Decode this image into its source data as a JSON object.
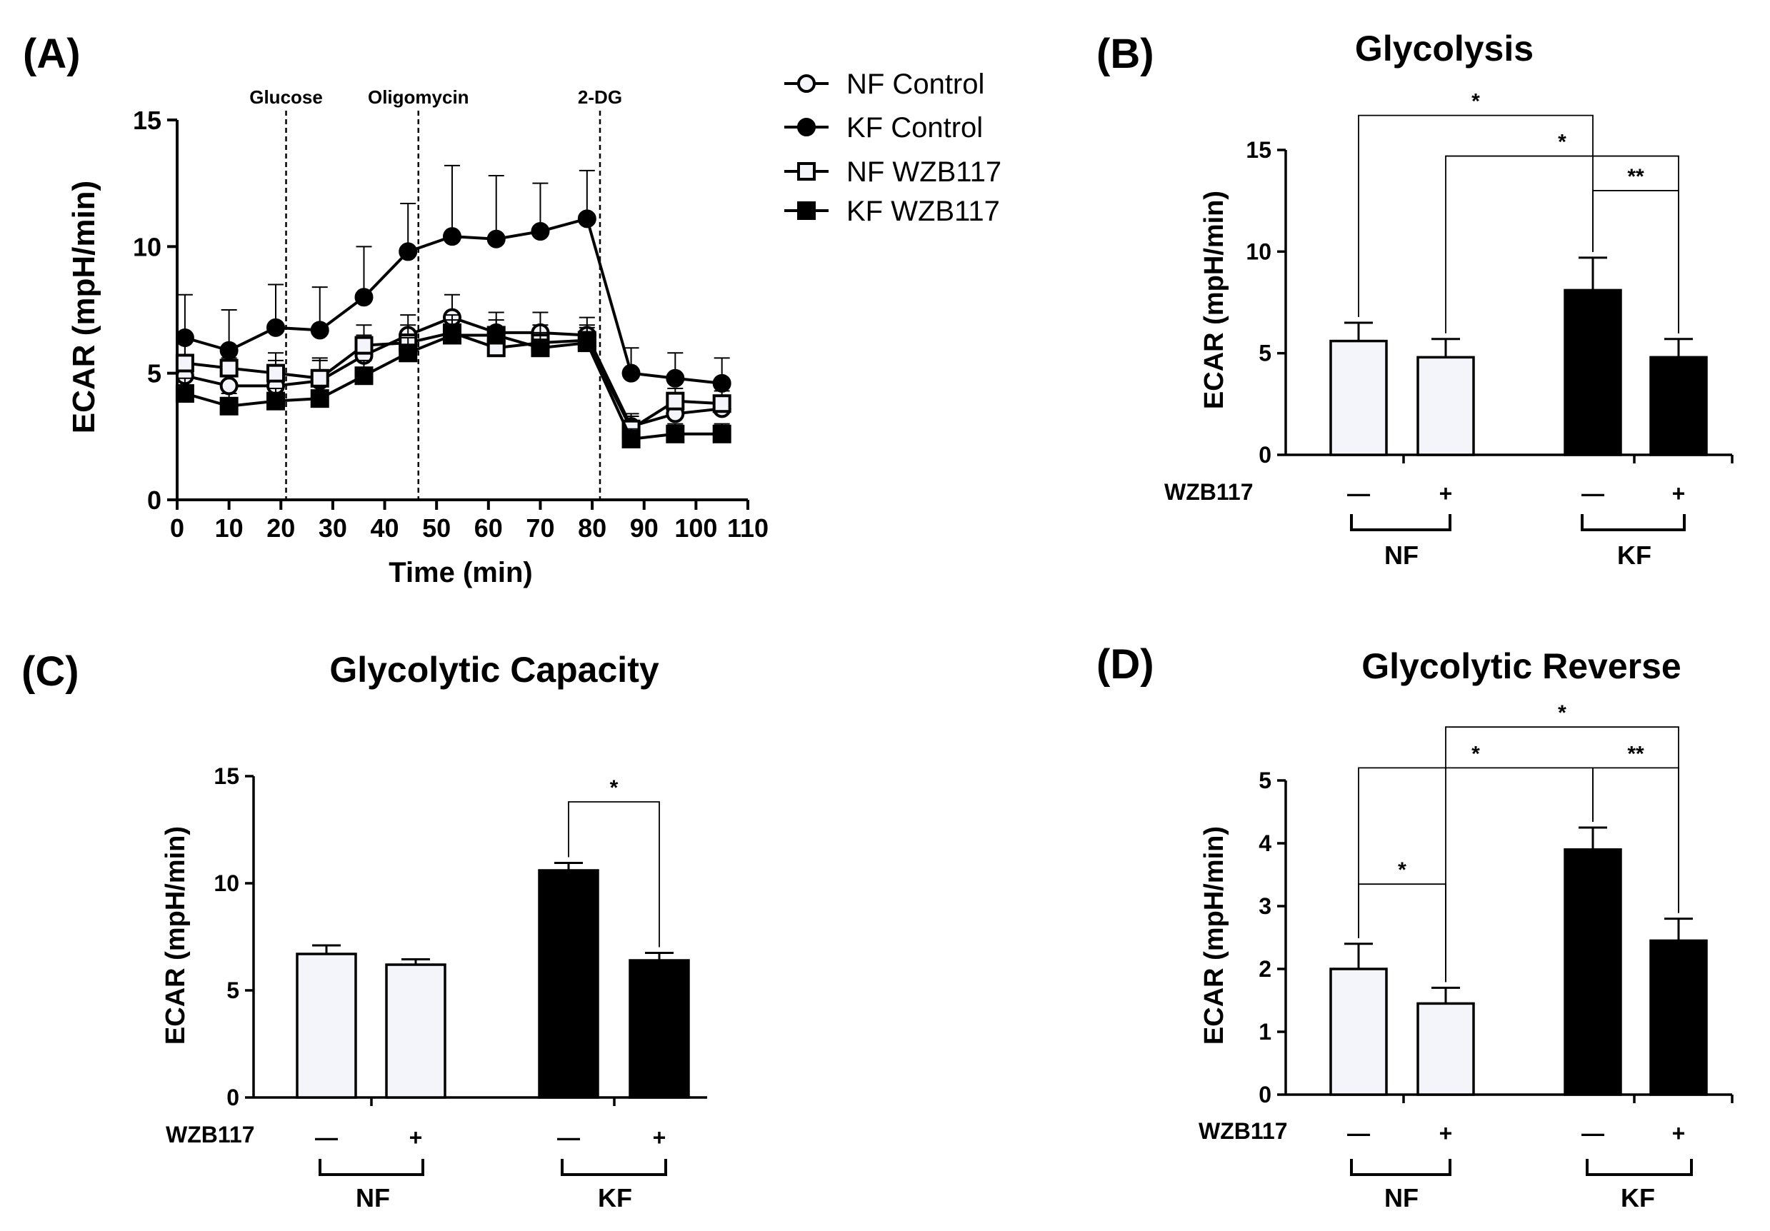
{
  "colors": {
    "open_fill": "#f3f5fb",
    "filled": "#000000",
    "line": "#000000"
  },
  "legend": [
    {
      "label": "NF Control",
      "marker": "circle-open"
    },
    {
      "label": "KF Control",
      "marker": "circle-filled"
    },
    {
      "label": "NF WZB117",
      "marker": "square-open"
    },
    {
      "label": "KF WZB117",
      "marker": "square-filled"
    }
  ],
  "chart_data": [
    {
      "id": "A",
      "panel_label": "(A)",
      "type": "line",
      "title": "",
      "xlabel": "Time   (min)",
      "ylabel": "ECAR (mpH/min)",
      "xlim": [
        0,
        110
      ],
      "ylim": [
        0,
        15
      ],
      "xticks": [
        "0",
        "10",
        "20",
        "30",
        "40",
        "50",
        "60",
        "70",
        "80",
        "90",
        "100",
        "110"
      ],
      "yticks": [
        "0",
        "5",
        "10",
        "15"
      ],
      "events": [
        {
          "label": "Glucose",
          "x": 21
        },
        {
          "label": "Oligomycin",
          "x": 46.5
        },
        {
          "label": "2-DG",
          "x": 81.5
        }
      ],
      "x": [
        1.5,
        10,
        19,
        27.5,
        36,
        44.5,
        53,
        61.5,
        70,
        79,
        87.5,
        96,
        105
      ],
      "series": [
        {
          "name": "NF Control",
          "marker": "circle-open",
          "values": [
            4.9,
            4.5,
            4.5,
            4.7,
            5.7,
            6.5,
            7.2,
            6.6,
            6.6,
            6.5,
            2.9,
            3.4,
            3.6
          ],
          "errors": [
            1.4,
            1.1,
            1.0,
            0.9,
            0.8,
            0.8,
            0.9,
            0.8,
            0.8,
            0.7,
            0.5,
            0.6,
            0.5
          ]
        },
        {
          "name": "KF Control",
          "marker": "circle-filled",
          "values": [
            6.4,
            5.9,
            6.8,
            6.7,
            8.0,
            9.8,
            10.4,
            10.3,
            10.6,
            11.1,
            5.0,
            4.8,
            4.6
          ],
          "errors": [
            1.7,
            1.6,
            1.7,
            1.7,
            2.0,
            1.9,
            2.8,
            2.5,
            1.9,
            1.9,
            1.0,
            1.0,
            1.0
          ]
        },
        {
          "name": "NF WZB117",
          "marker": "square-open",
          "values": [
            5.4,
            5.2,
            5.0,
            4.8,
            6.1,
            6.2,
            6.6,
            6.0,
            6.2,
            6.3,
            2.8,
            3.9,
            3.8
          ],
          "errors": [
            1.0,
            0.8,
            0.8,
            0.7,
            0.8,
            0.7,
            0.7,
            0.7,
            0.7,
            0.6,
            0.5,
            0.5,
            0.5
          ]
        },
        {
          "name": "KF WZB117",
          "marker": "square-filled",
          "values": [
            4.2,
            3.7,
            3.9,
            4.0,
            4.9,
            5.8,
            6.5,
            6.5,
            6.0,
            6.2,
            2.4,
            2.6,
            2.6
          ],
          "errors": [
            0.6,
            0.5,
            0.5,
            0.5,
            0.6,
            0.6,
            0.6,
            0.6,
            0.6,
            0.6,
            0.4,
            0.4,
            0.4
          ]
        }
      ]
    },
    {
      "id": "B",
      "panel_label": "(B)",
      "type": "bar",
      "title": "Glycolysis",
      "ylabel": "ECAR (mpH/min)",
      "ylim": [
        0,
        15
      ],
      "yticks": [
        "0",
        "5",
        "10",
        "15"
      ],
      "condition_label": "WZB117",
      "categories": [
        "NF Control",
        "NF WZB117",
        "KF Control",
        "KF WZB117"
      ],
      "treatment": [
        "—",
        "+",
        "—",
        "+"
      ],
      "groups": [
        "NF",
        "KF"
      ],
      "values": [
        5.6,
        4.8,
        8.1,
        4.8
      ],
      "errors": [
        0.9,
        0.9,
        1.6,
        0.9
      ],
      "fills": [
        "open",
        "open",
        "filled",
        "filled"
      ],
      "significance": [
        {
          "from": 0,
          "to": 2,
          "y": 16.7,
          "label": "*"
        },
        {
          "from": 1,
          "to": 3,
          "y": 14.7,
          "label": "*"
        },
        {
          "from": 2,
          "to": 3,
          "y": 13.0,
          "label": "**"
        }
      ]
    },
    {
      "id": "C",
      "panel_label": "(C)",
      "type": "bar",
      "title": "Glycolytic Capacity",
      "ylabel": "ECAR (mpH/min)",
      "ylim": [
        0,
        15
      ],
      "yticks": [
        "0",
        "5",
        "10",
        "15"
      ],
      "condition_label": "WZB117",
      "categories": [
        "NF Control",
        "NF WZB117",
        "KF Control",
        "KF WZB117"
      ],
      "treatment": [
        "—",
        "+",
        "—",
        "+"
      ],
      "groups": [
        "NF",
        "KF"
      ],
      "values": [
        6.7,
        6.2,
        10.6,
        6.4
      ],
      "errors": [
        0.4,
        0.25,
        0.35,
        0.35
      ],
      "fills": [
        "open",
        "open",
        "filled",
        "filled"
      ],
      "significance": [
        {
          "from": 2,
          "to": 3,
          "y": 13.8,
          "label": "*"
        }
      ]
    },
    {
      "id": "D",
      "panel_label": "(D)",
      "type": "bar",
      "title": "Glycolytic Reverse",
      "ylabel": "ECAR (mpH/min)",
      "ylim": [
        0,
        5
      ],
      "yticks": [
        "0",
        "1",
        "2",
        "3",
        "4",
        "5"
      ],
      "condition_label": "WZB117",
      "categories": [
        "NF Control",
        "NF WZB117",
        "KF Control",
        "KF WZB117"
      ],
      "treatment": [
        "—",
        "+",
        "—",
        "+"
      ],
      "groups": [
        "NF",
        "KF"
      ],
      "values": [
        2.0,
        1.45,
        3.9,
        2.45
      ],
      "errors": [
        0.4,
        0.25,
        0.35,
        0.35
      ],
      "fills": [
        "open",
        "open",
        "filled",
        "filled"
      ],
      "significance": [
        {
          "from": 0,
          "to": 1,
          "y": 3.35,
          "label": "*"
        },
        {
          "from": 0,
          "to": 2,
          "y": 5.2,
          "label": "*"
        },
        {
          "from": 1,
          "to": 3,
          "y": 5.85,
          "label": "*"
        },
        {
          "from": 2,
          "to": 3,
          "y": 5.2,
          "label": "**"
        }
      ]
    }
  ]
}
